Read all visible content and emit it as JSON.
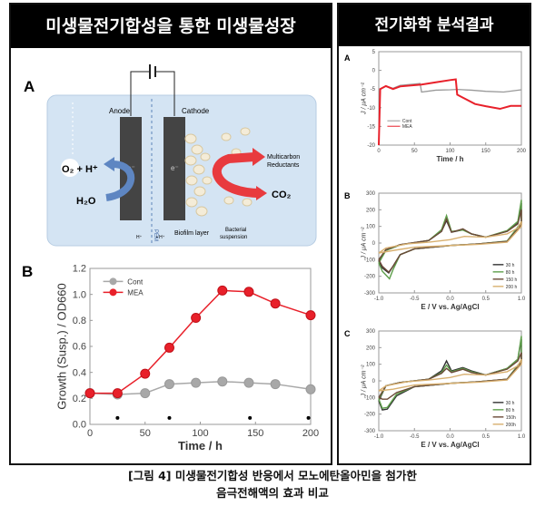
{
  "left_panel": {
    "title": "미생물전기합성을 통한 미생물성장",
    "diagram": {
      "label": "A",
      "anode": "Anode",
      "cathode": "Cathode",
      "electron": "e⁻",
      "o2": "O₂ + H⁺",
      "h2o": "H₂O",
      "products": [
        "Multicarbon",
        "Reductants"
      ],
      "co2": "CO₂",
      "pem": "PEM",
      "h_left": "H⁺",
      "h_right": "• H⁺",
      "biofilm": "Biofilm layer",
      "suspension": [
        "Bacterial",
        "suspension"
      ]
    }
  },
  "right_panel": {
    "title": "전기화학 분석결과"
  },
  "caption": {
    "line1": "[그림 4] 미생물전기합성 반응에서 모노에탄올아민을 첨가한",
    "line2": "음극전해액의 효과 비교"
  },
  "chart_data": [
    {
      "panel": "B",
      "type": "line",
      "xlabel": "Time / h",
      "ylabel": "Growth (Susp.) / OD660",
      "xlim": [
        0,
        200
      ],
      "ylim": [
        0,
        1.2
      ],
      "xticks": [
        "0",
        "50",
        "100",
        "150",
        "200"
      ],
      "yticks": [
        "0.0",
        "0.2",
        "0.4",
        "0.6",
        "0.8",
        "1.0",
        "1.2"
      ],
      "legend": "top-left",
      "x": [
        0,
        25,
        50,
        72,
        96,
        120,
        144,
        168,
        200
      ],
      "series": [
        {
          "name": "Cont",
          "color": "#a8a8a8",
          "values": [
            0.24,
            0.23,
            0.24,
            0.31,
            0.32,
            0.33,
            0.32,
            0.31,
            0.27
          ]
        },
        {
          "name": "MEA",
          "color": "#e8202a",
          "values": [
            0.24,
            0.24,
            0.39,
            0.59,
            0.82,
            1.03,
            1.02,
            0.93,
            0.84
          ]
        }
      ],
      "significance_marker": "*",
      "significance_x": [
        25,
        72,
        145,
        198
      ]
    },
    {
      "panel": "A",
      "type": "line",
      "xlabel": "Time / h",
      "ylabel": "J / μA cm⁻²",
      "xlim": [
        0,
        200
      ],
      "ylim": [
        -20,
        5
      ],
      "xticks": [
        "0",
        "50",
        "100",
        "150",
        "200"
      ],
      "yticks": [
        "5",
        "0",
        "-5",
        "-10",
        "-15",
        "-20"
      ],
      "legend": "bottom-left",
      "series": [
        {
          "name": "Cont",
          "color": "#999999",
          "points": [
            [
              0,
              -20
            ],
            [
              2,
              -5
            ],
            [
              10,
              -4.2
            ],
            [
              20,
              -4.8
            ],
            [
              30,
              -4
            ],
            [
              58,
              -3.5
            ],
            [
              60,
              -5.8
            ],
            [
              80,
              -5.3
            ],
            [
              100,
              -5.2
            ],
            [
              110,
              -5.1
            ],
            [
              130,
              -5.3
            ],
            [
              150,
              -5.6
            ],
            [
              175,
              -5.8
            ],
            [
              200,
              -5.2
            ]
          ]
        },
        {
          "name": "MEA",
          "color": "#e8202a",
          "points": [
            [
              0,
              -20
            ],
            [
              2,
              -5
            ],
            [
              10,
              -4.2
            ],
            [
              20,
              -5
            ],
            [
              30,
              -4.3
            ],
            [
              60,
              -3.8
            ],
            [
              80,
              -3.2
            ],
            [
              100,
              -2.6
            ],
            [
              108,
              -2.4
            ],
            [
              110,
              -6.5
            ],
            [
              120,
              -7.5
            ],
            [
              135,
              -9
            ],
            [
              150,
              -9.6
            ],
            [
              170,
              -10.3
            ],
            [
              185,
              -9.5
            ],
            [
              200,
              -9.5
            ]
          ]
        }
      ]
    },
    {
      "panel": "B",
      "type": "line",
      "xlabel": "E / V vs. Ag/AgCl",
      "ylabel": "J / μA cm⁻²",
      "xlim": [
        -1,
        1
      ],
      "ylim": [
        -300,
        300
      ],
      "xticks": [
        "-1.0",
        "-0.5",
        "0.0",
        "0.5",
        "1.0"
      ],
      "yticks": [
        "300",
        "200",
        "100",
        "0",
        "-100",
        "-200",
        "-300"
      ],
      "legend": "bottom-right",
      "series": [
        {
          "name": "30 h",
          "color": "#333333",
          "points": [
            [
              -1,
              -110
            ],
            [
              -0.9,
              -40
            ],
            [
              -0.7,
              -10
            ],
            [
              -0.3,
              15
            ],
            [
              -0.12,
              70
            ],
            [
              -0.05,
              135
            ],
            [
              0.02,
              65
            ],
            [
              0.18,
              80
            ],
            [
              0.3,
              55
            ],
            [
              0.5,
              35
            ],
            [
              0.8,
              70
            ],
            [
              0.95,
              120
            ],
            [
              1,
              240
            ],
            [
              1,
              120
            ],
            [
              0.8,
              10
            ],
            [
              0.4,
              -5
            ],
            [
              0,
              -15
            ],
            [
              -0.5,
              -35
            ],
            [
              -0.7,
              -70
            ],
            [
              -0.8,
              -140
            ],
            [
              -0.86,
              -180
            ],
            [
              -0.95,
              -150
            ],
            [
              -1,
              -110
            ]
          ]
        },
        {
          "name": "80 h",
          "color": "#5f9f4c",
          "points": [
            [
              -1,
              -120
            ],
            [
              -0.9,
              -45
            ],
            [
              -0.7,
              -12
            ],
            [
              -0.3,
              15
            ],
            [
              -0.12,
              80
            ],
            [
              -0.05,
              165
            ],
            [
              0.02,
              70
            ],
            [
              0.18,
              78
            ],
            [
              0.3,
              55
            ],
            [
              0.5,
              35
            ],
            [
              0.8,
              75
            ],
            [
              0.95,
              130
            ],
            [
              1,
              260
            ],
            [
              1,
              125
            ],
            [
              0.8,
              12
            ],
            [
              0.4,
              -5
            ],
            [
              0,
              -15
            ],
            [
              -0.5,
              -35
            ],
            [
              -0.7,
              -70
            ],
            [
              -0.8,
              -160
            ],
            [
              -0.85,
              -215
            ],
            [
              -0.95,
              -170
            ],
            [
              -1,
              -120
            ]
          ]
        },
        {
          "name": "150 h",
          "color": "#6b4a38",
          "points": [
            [
              -1,
              -100
            ],
            [
              -0.9,
              -40
            ],
            [
              -0.7,
              -10
            ],
            [
              -0.3,
              15
            ],
            [
              -0.12,
              70
            ],
            [
              -0.05,
              145
            ],
            [
              0.02,
              65
            ],
            [
              0.18,
              85
            ],
            [
              0.3,
              55
            ],
            [
              0.5,
              35
            ],
            [
              0.8,
              70
            ],
            [
              0.95,
              115
            ],
            [
              1,
              200
            ],
            [
              1,
              110
            ],
            [
              0.8,
              10
            ],
            [
              0.4,
              -5
            ],
            [
              0,
              -15
            ],
            [
              -0.5,
              -35
            ],
            [
              -0.7,
              -70
            ],
            [
              -0.8,
              -140
            ],
            [
              -0.86,
              -175
            ],
            [
              -0.95,
              -140
            ],
            [
              -1,
              -100
            ]
          ]
        },
        {
          "name": "200 h",
          "color": "#d8b070",
          "points": [
            [
              -1,
              -60
            ],
            [
              -0.9,
              -30
            ],
            [
              -0.6,
              -5
            ],
            [
              -0.3,
              5
            ],
            [
              0,
              20
            ],
            [
              0.2,
              40
            ],
            [
              0.5,
              35
            ],
            [
              0.8,
              55
            ],
            [
              0.95,
              90
            ],
            [
              1,
              130
            ],
            [
              1,
              100
            ],
            [
              0.8,
              5
            ],
            [
              0.4,
              -8
            ],
            [
              0,
              -15
            ],
            [
              -0.5,
              -25
            ],
            [
              -0.8,
              -45
            ],
            [
              -1,
              -60
            ]
          ]
        }
      ]
    },
    {
      "panel": "C",
      "type": "line",
      "xlabel": "E / V vs. Ag/AgCl",
      "ylabel": "J / μA cm⁻²",
      "xlim": [
        -1,
        1
      ],
      "ylim": [
        -300,
        300
      ],
      "xticks": [
        "-1.0",
        "-0.5",
        "0.0",
        "0.5",
        "1.0"
      ],
      "yticks": [
        "300",
        "200",
        "100",
        "0",
        "-100",
        "-200",
        "-300"
      ],
      "legend": "bottom-right",
      "series": [
        {
          "name": "30 h",
          "color": "#333333",
          "points": [
            [
              -1,
              -120
            ],
            [
              -0.9,
              -30
            ],
            [
              -0.7,
              -10
            ],
            [
              -0.3,
              10
            ],
            [
              -0.12,
              60
            ],
            [
              -0.05,
              120
            ],
            [
              0.02,
              60
            ],
            [
              0.18,
              80
            ],
            [
              0.3,
              60
            ],
            [
              0.5,
              35
            ],
            [
              0.8,
              75
            ],
            [
              0.95,
              130
            ],
            [
              1,
              250
            ],
            [
              1,
              120
            ],
            [
              0.8,
              10
            ],
            [
              0.4,
              -5
            ],
            [
              0,
              -15
            ],
            [
              -0.5,
              -35
            ],
            [
              -0.75,
              -90
            ],
            [
              -0.88,
              -170
            ],
            [
              -0.95,
              -175
            ],
            [
              -1,
              -120
            ]
          ]
        },
        {
          "name": "80 h",
          "color": "#5f9f4c",
          "points": [
            [
              -1,
              -110
            ],
            [
              -0.9,
              -30
            ],
            [
              -0.7,
              -10
            ],
            [
              -0.3,
              10
            ],
            [
              -0.12,
              50
            ],
            [
              -0.05,
              95
            ],
            [
              0.02,
              55
            ],
            [
              0.18,
              75
            ],
            [
              0.3,
              55
            ],
            [
              0.5,
              35
            ],
            [
              0.8,
              75
            ],
            [
              0.95,
              130
            ],
            [
              1,
              270
            ],
            [
              1,
              120
            ],
            [
              0.8,
              10
            ],
            [
              0.4,
              -5
            ],
            [
              0,
              -15
            ],
            [
              -0.5,
              -35
            ],
            [
              -0.75,
              -80
            ],
            [
              -0.88,
              -160
            ],
            [
              -0.95,
              -165
            ],
            [
              -1,
              -110
            ]
          ]
        },
        {
          "name": "150h",
          "color": "#6b4a38",
          "points": [
            [
              -1,
              -100
            ],
            [
              -0.9,
              -30
            ],
            [
              -0.7,
              -10
            ],
            [
              -0.3,
              10
            ],
            [
              -0.12,
              45
            ],
            [
              -0.05,
              75
            ],
            [
              0.02,
              50
            ],
            [
              0.18,
              70
            ],
            [
              0.3,
              50
            ],
            [
              0.5,
              35
            ],
            [
              0.8,
              70
            ],
            [
              0.95,
              120
            ],
            [
              1,
              170
            ],
            [
              1,
              110
            ],
            [
              0.8,
              10
            ],
            [
              0.4,
              -5
            ],
            [
              0,
              -15
            ],
            [
              -0.5,
              -35
            ],
            [
              -0.75,
              -70
            ],
            [
              -0.88,
              -110
            ],
            [
              -0.95,
              -110
            ],
            [
              -1,
              -100
            ]
          ]
        },
        {
          "name": "200h",
          "color": "#d8b070",
          "points": [
            [
              -1,
              -60
            ],
            [
              -0.9,
              -30
            ],
            [
              -0.6,
              -5
            ],
            [
              -0.3,
              5
            ],
            [
              0,
              20
            ],
            [
              0.2,
              40
            ],
            [
              0.5,
              35
            ],
            [
              0.8,
              55
            ],
            [
              0.95,
              90
            ],
            [
              1,
              130
            ],
            [
              1,
              100
            ],
            [
              0.8,
              5
            ],
            [
              0.4,
              -8
            ],
            [
              0,
              -15
            ],
            [
              -0.5,
              -25
            ],
            [
              -0.8,
              -50
            ],
            [
              -1,
              -60
            ]
          ]
        }
      ]
    }
  ]
}
